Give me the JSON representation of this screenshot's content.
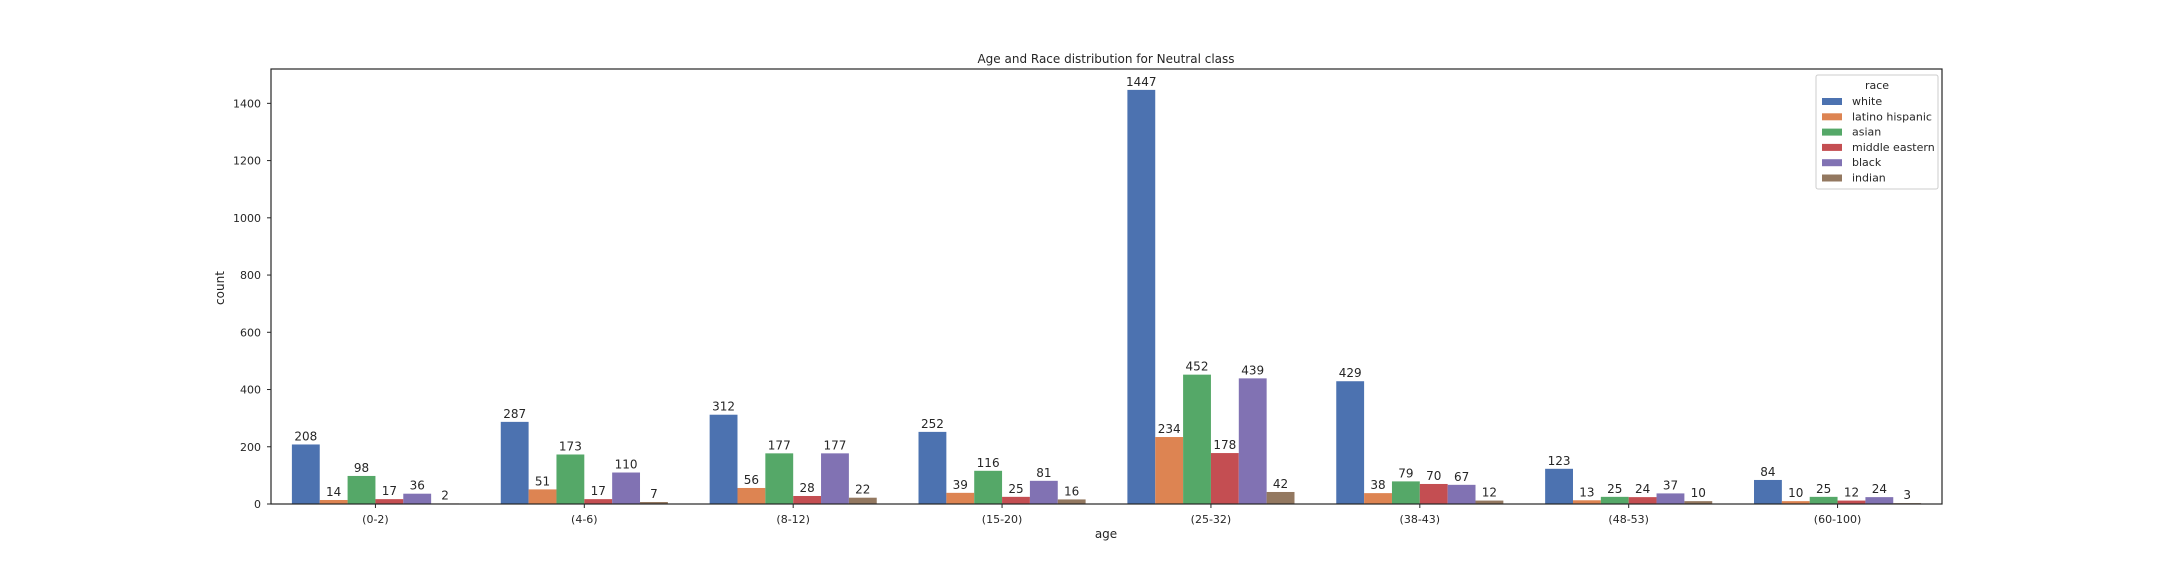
{
  "chart_data": {
    "type": "bar",
    "title": "Age and Race distribution for Neutral class",
    "xlabel": "age",
    "ylabel": "count",
    "ylim": [
      0,
      1520
    ],
    "yticks": [
      0,
      200,
      400,
      600,
      800,
      1000,
      1200,
      1400
    ],
    "grid": false,
    "legend_title": "race",
    "legend_position": "top-right",
    "categories": [
      "(0-2)",
      "(4-6)",
      "(8-12)",
      "(15-20)",
      "(25-32)",
      "(38-43)",
      "(48-53)",
      "(60-100)"
    ],
    "series": [
      {
        "name": "white",
        "color": "#4C72B0",
        "values": [
          208,
          287,
          312,
          252,
          1447,
          429,
          123,
          84
        ]
      },
      {
        "name": "latino hispanic",
        "color": "#DD8452",
        "values": [
          14,
          51,
          56,
          39,
          234,
          38,
          13,
          10
        ]
      },
      {
        "name": "asian",
        "color": "#55A868",
        "values": [
          98,
          173,
          177,
          116,
          452,
          79,
          25,
          25
        ]
      },
      {
        "name": "middle eastern",
        "color": "#C44E52",
        "values": [
          17,
          17,
          28,
          25,
          178,
          70,
          24,
          12
        ]
      },
      {
        "name": "black",
        "color": "#8172B3",
        "values": [
          36,
          110,
          177,
          81,
          439,
          67,
          37,
          24
        ]
      },
      {
        "name": "indian",
        "color": "#937860",
        "values": [
          2,
          7,
          22,
          16,
          42,
          12,
          10,
          3
        ]
      }
    ]
  }
}
